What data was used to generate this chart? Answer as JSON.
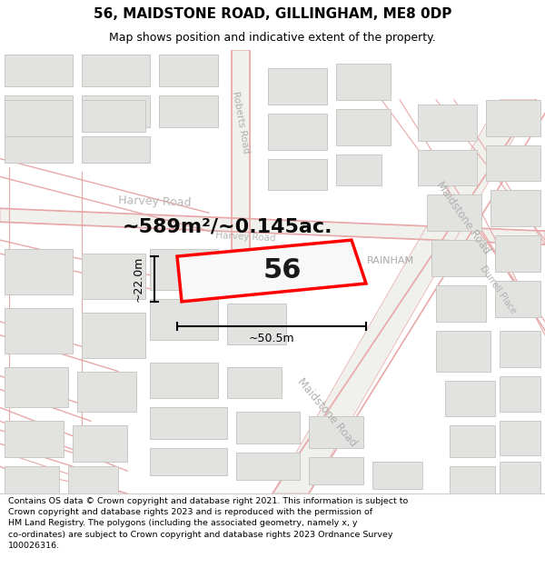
{
  "title": "56, MAIDSTONE ROAD, GILLINGHAM, ME8 0DP",
  "subtitle": "Map shows position and indicative extent of the property.",
  "footer": "Contains OS data © Crown copyright and database right 2021. This information is subject to Crown copyright and database rights 2023 and is reproduced with the permission of\nHM Land Registry. The polygons (including the associated geometry, namely x, y\nco-ordinates) are subject to Crown copyright and database rights 2023 Ordnance Survey\n100026316.",
  "area_label": "~589m²/~0.145ac.",
  "dim_h": "~22.0m",
  "dim_w": "~50.5m",
  "property_label": "56",
  "map_bg": "#f7f7f5",
  "header_bg": "#ffffff",
  "footer_bg": "#ffffff",
  "road_color": "#e8a8a8",
  "road_fill": "#f0f0ec",
  "building_fill": "#e2e2e0",
  "building_edge": "#c8c8c4",
  "property_fill": "#f8f8f8",
  "property_edge": "#ff0000",
  "dim_color": "#000000",
  "road_label_color": "#b0b0b0",
  "harvey_road_color": "#b8b8b8",
  "rainham_color": "#aaaaaa"
}
